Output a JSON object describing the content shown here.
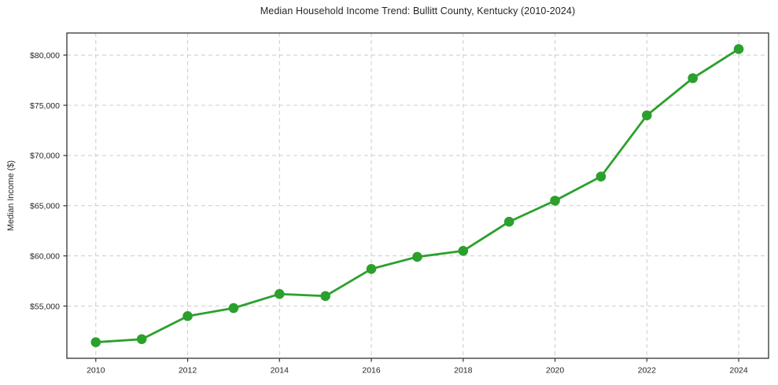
{
  "chart_data": {
    "type": "line",
    "title": "Median Household Income Trend: Bullitt County, Kentucky (2010-2024)",
    "ylabel": "Median Income ($)",
    "xlabel": "",
    "x": [
      2010,
      2011,
      2012,
      2013,
      2014,
      2015,
      2016,
      2017,
      2018,
      2019,
      2020,
      2021,
      2022,
      2023,
      2024
    ],
    "values": [
      51400,
      51700,
      54000,
      54800,
      56200,
      56000,
      58700,
      59900,
      60500,
      63400,
      65500,
      67900,
      74000,
      77700,
      80600
    ],
    "xticks": [
      2010,
      2012,
      2014,
      2016,
      2018,
      2020,
      2022,
      2024
    ],
    "yticks": [
      55000,
      60000,
      65000,
      70000,
      75000,
      80000
    ],
    "ytick_labels": [
      "$55,000",
      "$60,000",
      "$65,000",
      "$70,000",
      "$75,000",
      "$80,000"
    ],
    "xlim": [
      2009.37,
      2024.65
    ],
    "ylim": [
      49800,
      82200
    ],
    "grid": true,
    "legend": "none",
    "line_color": "#2ca02c",
    "grid_color": "#cccccc",
    "spine_color": "#333333",
    "text_color": "#262626"
  }
}
